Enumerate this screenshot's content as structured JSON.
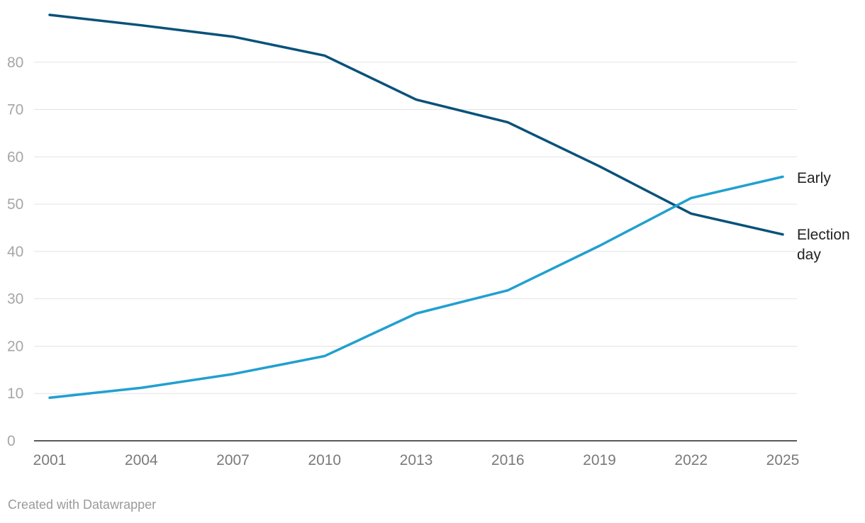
{
  "chart_data": {
    "type": "line",
    "x": [
      2001,
      2004,
      2007,
      2010,
      2013,
      2016,
      2019,
      2022,
      2025
    ],
    "x_ticks": [
      "2001",
      "2004",
      "2007",
      "2010",
      "2013",
      "2016",
      "2019",
      "2022",
      "2025"
    ],
    "y_ticks": [
      "0",
      "10",
      "20",
      "30",
      "40",
      "50",
      "60",
      "70",
      "80"
    ],
    "ylim": [
      0,
      90
    ],
    "xlim": [
      2001,
      2025
    ],
    "grid": true,
    "series": [
      {
        "name": "Election day",
        "color": "#08527a",
        "x": [
          2001,
          2004,
          2007,
          2010,
          2013,
          2016,
          2019,
          2022,
          2025
        ],
        "values": [
          90.0,
          87.8,
          85.4,
          81.4,
          72.1,
          67.3,
          58.0,
          48.0,
          43.6
        ]
      },
      {
        "name": "Early",
        "color": "#21a0cf",
        "x": [
          2001,
          2004,
          2007,
          2010,
          2013,
          2016,
          2019,
          2022,
          2025
        ],
        "values": [
          9.1,
          11.2,
          14.1,
          17.9,
          26.9,
          31.8,
          41.2,
          51.3,
          55.8
        ]
      }
    ],
    "label_lines": {
      "early": [
        "Early"
      ],
      "election_day": [
        "Election",
        "day"
      ]
    }
  },
  "footer": "Created with Datawrapper"
}
